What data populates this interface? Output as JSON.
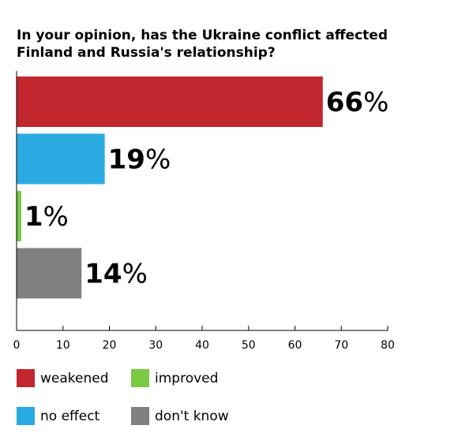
{
  "chart_data": {
    "type": "bar",
    "orientation": "horizontal",
    "title": "In your opinion, has the Ukraine conflict affected Finland and Russia's relationship?",
    "categories": [
      "weakened",
      "no effect",
      "improved",
      "don't know"
    ],
    "values": [
      66,
      19,
      1,
      14
    ],
    "value_labels": [
      {
        "num": "66",
        "unit": "%"
      },
      {
        "num": "19",
        "unit": "%"
      },
      {
        "num": "1",
        "unit": "%"
      },
      {
        "num": "14",
        "unit": "%"
      }
    ],
    "colors": [
      "#c1272d",
      "#29abe2",
      "#7ac943",
      "#808080"
    ],
    "xlim": [
      0,
      80
    ],
    "xticks": [
      0,
      10,
      20,
      30,
      40,
      50,
      60,
      70,
      80
    ],
    "xlabel": "",
    "ylabel": "",
    "grid": false,
    "legend": {
      "placement": "bottom",
      "items": [
        {
          "label": "weakened",
          "color": "#c1272d"
        },
        {
          "label": "improved",
          "color": "#7ac943"
        },
        {
          "label": "no effect",
          "color": "#29abe2"
        },
        {
          "label": "don't know",
          "color": "#808080"
        }
      ]
    }
  }
}
